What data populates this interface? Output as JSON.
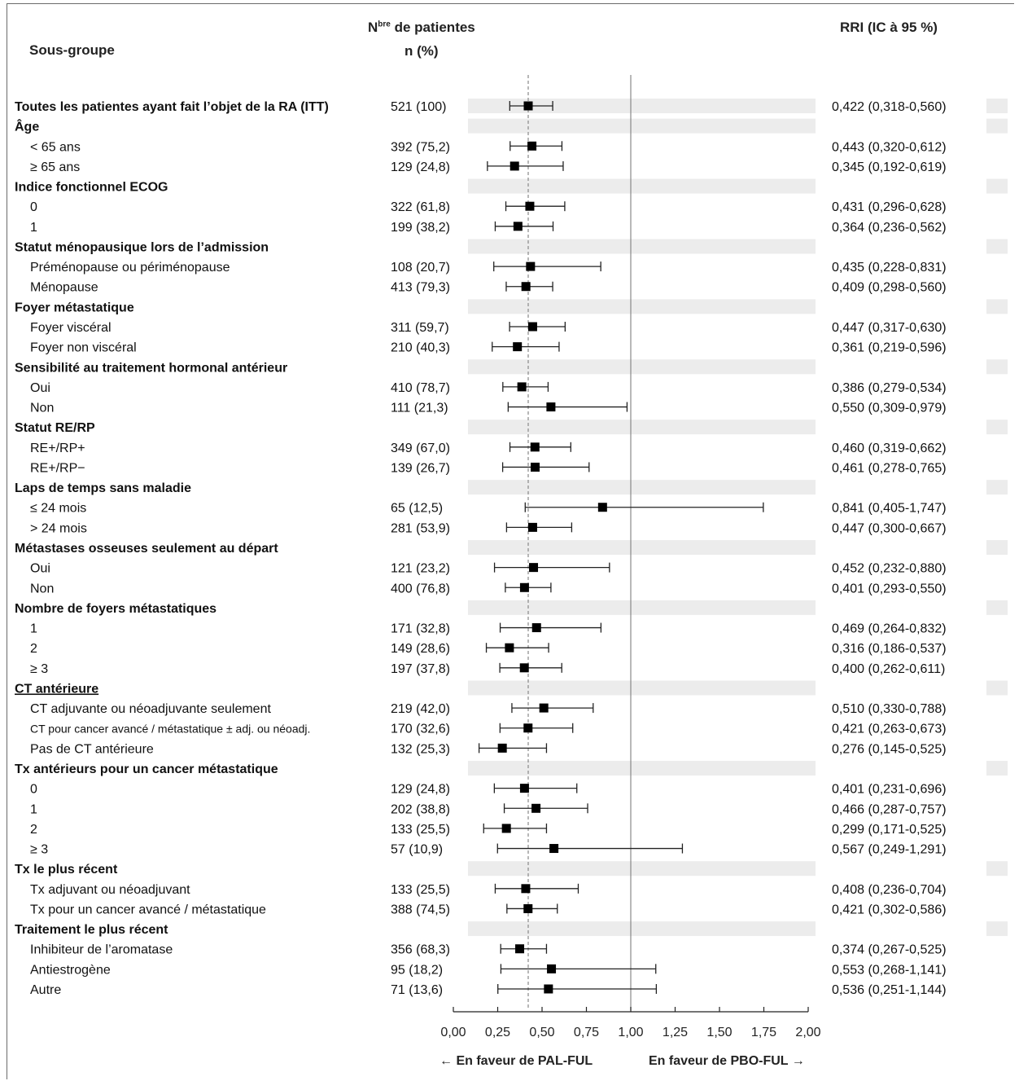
{
  "headers": {
    "subgroup": "Sous-groupe",
    "n_line1_prefix": "N",
    "n_line1_sup": "bre",
    "n_line1_rest": " de patientes",
    "n_line2": "n (%)",
    "hr": "RRI (IC à 95 %)"
  },
  "footer": {
    "favor_left": "← En faveur de PAL-FUL",
    "favor_right": "En faveur de PBO-FUL →"
  },
  "chart_data": {
    "type": "forest",
    "xlim": [
      0,
      2
    ],
    "reference_line": 1.0,
    "overall_line": 0.422,
    "x_ticks": [
      "0,00",
      "0,25",
      "0,50",
      "0,75",
      "1,00",
      "1,25",
      "1,50",
      "1,75",
      "2,00"
    ],
    "x_tick_values": [
      0,
      0.25,
      0.5,
      0.75,
      1.0,
      1.25,
      1.5,
      1.75,
      2.0
    ],
    "rows": [
      {
        "label": "Toutes les patientes ayant fait l’objet de la RA (ITT)",
        "bold": true,
        "n": "521 (100)",
        "hr": 0.422,
        "lo": 0.318,
        "hi": 0.56,
        "text": "0,422 (0,318-0,560)"
      },
      {
        "label": "Âge",
        "bold": true
      },
      {
        "label": "< 65 ans",
        "n": "392 (75,2)",
        "hr": 0.443,
        "lo": 0.32,
        "hi": 0.612,
        "text": "0,443 (0,320-0,612)"
      },
      {
        "label": "≥ 65 ans",
        "n": "129 (24,8)",
        "hr": 0.345,
        "lo": 0.192,
        "hi": 0.619,
        "text": "0,345 (0,192-0,619)"
      },
      {
        "label": "Indice fonctionnel ECOG",
        "bold": true
      },
      {
        "label": "0",
        "n": "322 (61,8)",
        "hr": 0.431,
        "lo": 0.296,
        "hi": 0.628,
        "text": "0,431 (0,296-0,628)"
      },
      {
        "label": "1",
        "n": "199 (38,2)",
        "hr": 0.364,
        "lo": 0.236,
        "hi": 0.562,
        "text": "0,364 (0,236-0,562)"
      },
      {
        "label": "Statut ménopausique lors de l’admission",
        "bold": true
      },
      {
        "label": "Préménopause ou périménopause",
        "n": "108 (20,7)",
        "hr": 0.435,
        "lo": 0.228,
        "hi": 0.831,
        "text": "0,435 (0,228-0,831)"
      },
      {
        "label": "Ménopause",
        "n": "413 (79,3)",
        "hr": 0.409,
        "lo": 0.298,
        "hi": 0.56,
        "text": "0,409 (0,298-0,560)"
      },
      {
        "label": "Foyer métastatique",
        "bold": true
      },
      {
        "label": "Foyer viscéral",
        "n": "311 (59,7)",
        "hr": 0.447,
        "lo": 0.317,
        "hi": 0.63,
        "text": "0,447 (0,317-0,630)"
      },
      {
        "label": "Foyer non viscéral",
        "n": "210 (40,3)",
        "hr": 0.361,
        "lo": 0.219,
        "hi": 0.596,
        "text": "0,361 (0,219-0,596)"
      },
      {
        "label": "Sensibilité au traitement hormonal antérieur",
        "bold": true
      },
      {
        "label": "Oui",
        "n": "410 (78,7)",
        "hr": 0.386,
        "lo": 0.279,
        "hi": 0.534,
        "text": "0,386 (0,279-0,534)"
      },
      {
        "label": "Non",
        "n": "111 (21,3)",
        "hr": 0.55,
        "lo": 0.309,
        "hi": 0.979,
        "text": "0,550 (0,309-0,979)"
      },
      {
        "label": "Statut RE/RP",
        "bold": true
      },
      {
        "label": "RE+/RP+",
        "n": "349 (67,0)",
        "hr": 0.46,
        "lo": 0.319,
        "hi": 0.662,
        "text": "0,460 (0,319-0,662)"
      },
      {
        "label": "RE+/RP−",
        "n": "139 (26,7)",
        "hr": 0.461,
        "lo": 0.278,
        "hi": 0.765,
        "text": "0,461 (0,278-0,765)"
      },
      {
        "label": "Laps de temps sans maladie",
        "bold": true
      },
      {
        "label": "≤ 24 mois",
        "n": "65 (12,5)",
        "hr": 0.841,
        "lo": 0.405,
        "hi": 1.747,
        "text": "0,841 (0,405-1,747)"
      },
      {
        "label": "> 24 mois",
        "n": "281 (53,9)",
        "hr": 0.447,
        "lo": 0.3,
        "hi": 0.667,
        "text": "0,447 (0,300-0,667)"
      },
      {
        "label": "Métastases osseuses seulement au départ",
        "bold": true
      },
      {
        "label": "Oui",
        "n": "121 (23,2)",
        "hr": 0.452,
        "lo": 0.232,
        "hi": 0.88,
        "text": "0,452 (0,232-0,880)"
      },
      {
        "label": "Non",
        "n": "400 (76,8)",
        "hr": 0.401,
        "lo": 0.293,
        "hi": 0.55,
        "text": "0,401 (0,293-0,550)"
      },
      {
        "label": "Nombre de foyers métastatiques",
        "bold": true
      },
      {
        "label": "1",
        "n": "171 (32,8)",
        "hr": 0.469,
        "lo": 0.264,
        "hi": 0.832,
        "text": "0,469 (0,264-0,832)"
      },
      {
        "label": "2",
        "n": "149 (28,6)",
        "hr": 0.316,
        "lo": 0.186,
        "hi": 0.537,
        "text": "0,316 (0,186-0,537)"
      },
      {
        "label": "≥ 3",
        "n": "197 (37,8)",
        "hr": 0.4,
        "lo": 0.262,
        "hi": 0.611,
        "text": "0,400 (0,262-0,611)"
      },
      {
        "label": "CT antérieure",
        "bold": true,
        "underline": true
      },
      {
        "label": "CT adjuvante ou néoadjuvante seulement",
        "n": "219 (42,0)",
        "hr": 0.51,
        "lo": 0.33,
        "hi": 0.788,
        "text": "0,510 (0,330-0,788)"
      },
      {
        "label": "CT pour cancer avancé / métastatique ± adj. ou néoadj.",
        "small": true,
        "n": "170 (32,6)",
        "hr": 0.421,
        "lo": 0.263,
        "hi": 0.673,
        "text": "0,421 (0,263-0,673)"
      },
      {
        "label": "Pas de CT antérieure",
        "n": "132 (25,3)",
        "hr": 0.276,
        "lo": 0.145,
        "hi": 0.525,
        "text": "0,276 (0,145-0,525)"
      },
      {
        "label": "Tx antérieurs pour un cancer métastatique",
        "bold": true
      },
      {
        "label": "0",
        "n": "129 (24,8)",
        "hr": 0.401,
        "lo": 0.231,
        "hi": 0.696,
        "text": "0,401 (0,231-0,696)"
      },
      {
        "label": "1",
        "n": "202 (38,8)",
        "hr": 0.466,
        "lo": 0.287,
        "hi": 0.757,
        "text": "0,466 (0,287-0,757)"
      },
      {
        "label": "2",
        "n": "133 (25,5)",
        "hr": 0.299,
        "lo": 0.171,
        "hi": 0.525,
        "text": "0,299 (0,171-0,525)"
      },
      {
        "label": "≥ 3",
        "n": "57 (10,9)",
        "hr": 0.567,
        "lo": 0.249,
        "hi": 1.291,
        "text": "0,567 (0,249-1,291)"
      },
      {
        "label": "Tx le plus récent",
        "bold": true
      },
      {
        "label": "Tx adjuvant ou néoadjuvant",
        "n": "133 (25,5)",
        "hr": 0.408,
        "lo": 0.236,
        "hi": 0.704,
        "text": "0,408 (0,236-0,704)"
      },
      {
        "label": "Tx pour un cancer avancé / métastatique",
        "n": "388 (74,5)",
        "hr": 0.421,
        "lo": 0.302,
        "hi": 0.586,
        "text": "0,421 (0,302-0,586)"
      },
      {
        "label": "Traitement le plus récent",
        "bold": true
      },
      {
        "label": "Inhibiteur de l’aromatase",
        "n": "356 (68,3)",
        "hr": 0.374,
        "lo": 0.267,
        "hi": 0.525,
        "text": "0,374 (0,267-0,525)"
      },
      {
        "label": "Antiestrogène",
        "n": "95 (18,2)",
        "hr": 0.553,
        "lo": 0.268,
        "hi": 1.141,
        "text": "0,553 (0,268-1,141)"
      },
      {
        "label": "Autre",
        "n": "71 (13,6)",
        "hr": 0.536,
        "lo": 0.251,
        "hi": 1.144,
        "text": "0,536 (0,251-1,144)"
      }
    ]
  }
}
